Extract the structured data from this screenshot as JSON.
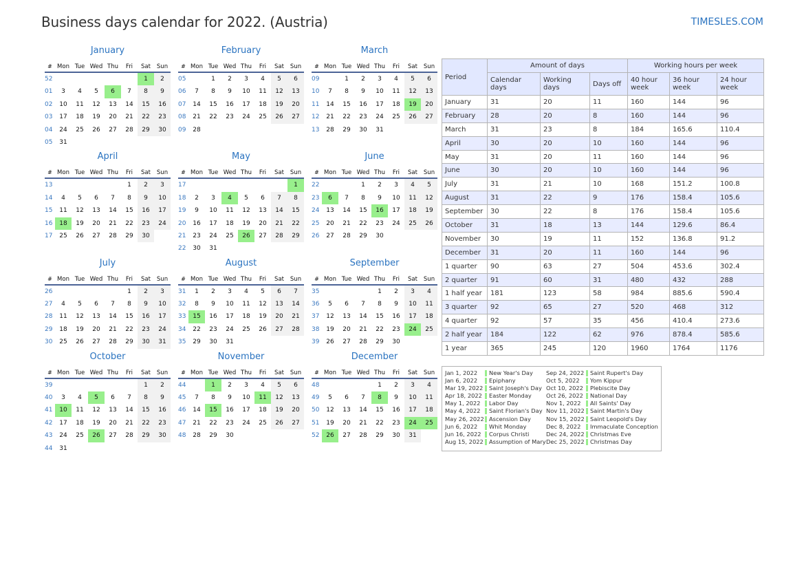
{
  "title": "Business days calendar for 2022. (Austria)",
  "brand": "TIMESLES.COM",
  "colors": {
    "holiday": "#98ef8c",
    "weekend": "#f1f1f1",
    "accent": "#2a73c0",
    "week_number": "#3a78c0",
    "table_header": "#e2e8ff"
  },
  "weekday_headers": [
    "#",
    "Mon",
    "Tue",
    "Wed",
    "Thu",
    "Fri",
    "Sat",
    "Sun"
  ],
  "months": [
    {
      "name": "January",
      "weeks": [
        "52",
        "01",
        "02",
        "03",
        "04",
        "05"
      ],
      "rows": [
        [
          0,
          0,
          0,
          0,
          0,
          1,
          2
        ],
        [
          3,
          4,
          5,
          6,
          7,
          8,
          9
        ],
        [
          10,
          11,
          12,
          13,
          14,
          15,
          16
        ],
        [
          17,
          18,
          19,
          20,
          21,
          22,
          23
        ],
        [
          24,
          25,
          26,
          27,
          28,
          29,
          30
        ],
        [
          31,
          0,
          0,
          0,
          0,
          0,
          0
        ]
      ],
      "holidays": [
        1,
        6
      ]
    },
    {
      "name": "February",
      "weeks": [
        "05",
        "06",
        "07",
        "08",
        "09"
      ],
      "rows": [
        [
          0,
          1,
          2,
          3,
          4,
          5,
          6
        ],
        [
          7,
          8,
          9,
          10,
          11,
          12,
          13
        ],
        [
          14,
          15,
          16,
          17,
          18,
          19,
          20
        ],
        [
          21,
          22,
          23,
          24,
          25,
          26,
          27
        ],
        [
          28,
          0,
          0,
          0,
          0,
          0,
          0
        ]
      ],
      "holidays": []
    },
    {
      "name": "March",
      "weeks": [
        "09",
        "10",
        "11",
        "12",
        "13"
      ],
      "rows": [
        [
          0,
          1,
          2,
          3,
          4,
          5,
          6
        ],
        [
          7,
          8,
          9,
          10,
          11,
          12,
          13
        ],
        [
          14,
          15,
          16,
          17,
          18,
          19,
          20
        ],
        [
          21,
          22,
          23,
          24,
          25,
          26,
          27
        ],
        [
          28,
          29,
          30,
          31,
          0,
          0,
          0
        ]
      ],
      "holidays": [
        19
      ]
    },
    {
      "name": "April",
      "weeks": [
        "13",
        "14",
        "15",
        "16",
        "17"
      ],
      "rows": [
        [
          0,
          0,
          0,
          0,
          1,
          2,
          3
        ],
        [
          4,
          5,
          6,
          7,
          8,
          9,
          10
        ],
        [
          11,
          12,
          13,
          14,
          15,
          16,
          17
        ],
        [
          18,
          19,
          20,
          21,
          22,
          23,
          24
        ],
        [
          25,
          26,
          27,
          28,
          29,
          30,
          0
        ]
      ],
      "holidays": [
        18
      ]
    },
    {
      "name": "May",
      "weeks": [
        "17",
        "18",
        "19",
        "20",
        "21",
        "22"
      ],
      "rows": [
        [
          0,
          0,
          0,
          0,
          0,
          0,
          1
        ],
        [
          2,
          3,
          4,
          5,
          6,
          7,
          8
        ],
        [
          9,
          10,
          11,
          12,
          13,
          14,
          15
        ],
        [
          16,
          17,
          18,
          19,
          20,
          21,
          22
        ],
        [
          23,
          24,
          25,
          26,
          27,
          28,
          29
        ],
        [
          30,
          31,
          0,
          0,
          0,
          0,
          0
        ]
      ],
      "holidays": [
        1,
        4,
        26
      ]
    },
    {
      "name": "June",
      "weeks": [
        "22",
        "23",
        "24",
        "25",
        "26"
      ],
      "rows": [
        [
          0,
          0,
          1,
          2,
          3,
          4,
          5
        ],
        [
          6,
          7,
          8,
          9,
          10,
          11,
          12
        ],
        [
          13,
          14,
          15,
          16,
          17,
          18,
          19
        ],
        [
          20,
          21,
          22,
          23,
          24,
          25,
          26
        ],
        [
          27,
          28,
          29,
          30,
          0,
          0,
          0
        ]
      ],
      "holidays": [
        6,
        16
      ]
    },
    {
      "name": "July",
      "weeks": [
        "26",
        "27",
        "28",
        "29",
        "30"
      ],
      "rows": [
        [
          0,
          0,
          0,
          0,
          1,
          2,
          3
        ],
        [
          4,
          5,
          6,
          7,
          8,
          9,
          10
        ],
        [
          11,
          12,
          13,
          14,
          15,
          16,
          17
        ],
        [
          18,
          19,
          20,
          21,
          22,
          23,
          24
        ],
        [
          25,
          26,
          27,
          28,
          29,
          30,
          31
        ]
      ],
      "holidays": []
    },
    {
      "name": "August",
      "weeks": [
        "31",
        "32",
        "33",
        "34",
        "35"
      ],
      "rows": [
        [
          1,
          2,
          3,
          4,
          5,
          6,
          7
        ],
        [
          8,
          9,
          10,
          11,
          12,
          13,
          14
        ],
        [
          15,
          16,
          17,
          18,
          19,
          20,
          21
        ],
        [
          22,
          23,
          24,
          25,
          26,
          27,
          28
        ],
        [
          29,
          30,
          31,
          0,
          0,
          0,
          0
        ]
      ],
      "holidays": [
        15
      ]
    },
    {
      "name": "September",
      "weeks": [
        "35",
        "36",
        "37",
        "38",
        "39"
      ],
      "rows": [
        [
          0,
          0,
          0,
          1,
          2,
          3,
          4
        ],
        [
          5,
          6,
          7,
          8,
          9,
          10,
          11
        ],
        [
          12,
          13,
          14,
          15,
          16,
          17,
          18
        ],
        [
          19,
          20,
          21,
          22,
          23,
          24,
          25
        ],
        [
          26,
          27,
          28,
          29,
          30,
          0,
          0
        ]
      ],
      "holidays": [
        24
      ]
    },
    {
      "name": "October",
      "weeks": [
        "39",
        "40",
        "41",
        "42",
        "43",
        "44"
      ],
      "rows": [
        [
          0,
          0,
          0,
          0,
          0,
          1,
          2
        ],
        [
          3,
          4,
          5,
          6,
          7,
          8,
          9
        ],
        [
          10,
          11,
          12,
          13,
          14,
          15,
          16
        ],
        [
          17,
          18,
          19,
          20,
          21,
          22,
          23
        ],
        [
          24,
          25,
          26,
          27,
          28,
          29,
          30
        ],
        [
          31,
          0,
          0,
          0,
          0,
          0,
          0
        ]
      ],
      "holidays": [
        5,
        10,
        26
      ]
    },
    {
      "name": "November",
      "weeks": [
        "44",
        "45",
        "46",
        "47",
        "48"
      ],
      "rows": [
        [
          0,
          1,
          2,
          3,
          4,
          5,
          6
        ],
        [
          7,
          8,
          9,
          10,
          11,
          12,
          13
        ],
        [
          14,
          15,
          16,
          17,
          18,
          19,
          20
        ],
        [
          21,
          22,
          23,
          24,
          25,
          26,
          27
        ],
        [
          28,
          29,
          30,
          0,
          0,
          0,
          0
        ]
      ],
      "holidays": [
        1,
        11,
        15
      ]
    },
    {
      "name": "December",
      "weeks": [
        "48",
        "49",
        "50",
        "51",
        "52"
      ],
      "rows": [
        [
          0,
          0,
          0,
          1,
          2,
          3,
          4
        ],
        [
          5,
          6,
          7,
          8,
          9,
          10,
          11
        ],
        [
          12,
          13,
          14,
          15,
          16,
          17,
          18
        ],
        [
          19,
          20,
          21,
          22,
          23,
          24,
          25
        ],
        [
          26,
          27,
          28,
          29,
          30,
          31,
          0
        ]
      ],
      "holidays": [
        8,
        24,
        25,
        26
      ]
    }
  ],
  "table": {
    "period": "Period",
    "group1": "Amount of days",
    "group2": "Working hours per week",
    "columns": [
      "Calendar days",
      "Working days",
      "Days off",
      "40 hour week",
      "36 hour week",
      "24 hour week"
    ],
    "rows": [
      [
        "January",
        "31",
        "20",
        "11",
        "160",
        "144",
        "96"
      ],
      [
        "February",
        "28",
        "20",
        "8",
        "160",
        "144",
        "96"
      ],
      [
        "March",
        "31",
        "23",
        "8",
        "184",
        "165.6",
        "110.4"
      ],
      [
        "April",
        "30",
        "20",
        "10",
        "160",
        "144",
        "96"
      ],
      [
        "May",
        "31",
        "20",
        "11",
        "160",
        "144",
        "96"
      ],
      [
        "June",
        "30",
        "20",
        "10",
        "160",
        "144",
        "96"
      ],
      [
        "July",
        "31",
        "21",
        "10",
        "168",
        "151.2",
        "100.8"
      ],
      [
        "August",
        "31",
        "22",
        "9",
        "176",
        "158.4",
        "105.6"
      ],
      [
        "September",
        "30",
        "22",
        "8",
        "176",
        "158.4",
        "105.6"
      ],
      [
        "October",
        "31",
        "18",
        "13",
        "144",
        "129.6",
        "86.4"
      ],
      [
        "November",
        "30",
        "19",
        "11",
        "152",
        "136.8",
        "91.2"
      ],
      [
        "December",
        "31",
        "20",
        "11",
        "160",
        "144",
        "96"
      ],
      [
        "1 quarter",
        "90",
        "63",
        "27",
        "504",
        "453.6",
        "302.4"
      ],
      [
        "2 quarter",
        "91",
        "60",
        "31",
        "480",
        "432",
        "288"
      ],
      [
        "1 half year",
        "181",
        "123",
        "58",
        "984",
        "885.6",
        "590.4"
      ],
      [
        "3 quarter",
        "92",
        "65",
        "27",
        "520",
        "468",
        "312"
      ],
      [
        "4 quarter",
        "92",
        "57",
        "35",
        "456",
        "410.4",
        "273.6"
      ],
      [
        "2 half year",
        "184",
        "122",
        "62",
        "976",
        "878.4",
        "585.6"
      ],
      [
        "1 year",
        "365",
        "245",
        "120",
        "1960",
        "1764",
        "1176"
      ]
    ]
  },
  "holidays": [
    [
      "Jan 1, 2022",
      "New Year's Day",
      "Sep 24, 2022",
      "Saint Rupert's Day"
    ],
    [
      "Jan 6, 2022",
      "Epiphany",
      "Oct 5, 2022",
      "Yom Kippur"
    ],
    [
      "Mar 19, 2022",
      "Saint Joseph's Day",
      "Oct 10, 2022",
      "Plebiscite Day"
    ],
    [
      "Apr 18, 2022",
      "Easter Monday",
      "Oct 26, 2022",
      "National Day"
    ],
    [
      "May 1, 2022",
      "Labor Day",
      "Nov 1, 2022",
      "All Saints' Day"
    ],
    [
      "May 4, 2022",
      "Saint Florian's Day",
      "Nov 11, 2022",
      "Saint Martin's Day"
    ],
    [
      "May 26, 2022",
      "Ascension Day",
      "Nov 15, 2022",
      "Saint Leopold's Day"
    ],
    [
      "Jun 6, 2022",
      "Whit Monday",
      "Dec 8, 2022",
      "Immaculate Conception"
    ],
    [
      "Jun 16, 2022",
      "Corpus Christi",
      "Dec 24, 2022",
      "Christmas Eve"
    ],
    [
      "Aug 15, 2022",
      "Assumption of Mary",
      "Dec 25, 2022",
      "Christmas Day"
    ]
  ]
}
